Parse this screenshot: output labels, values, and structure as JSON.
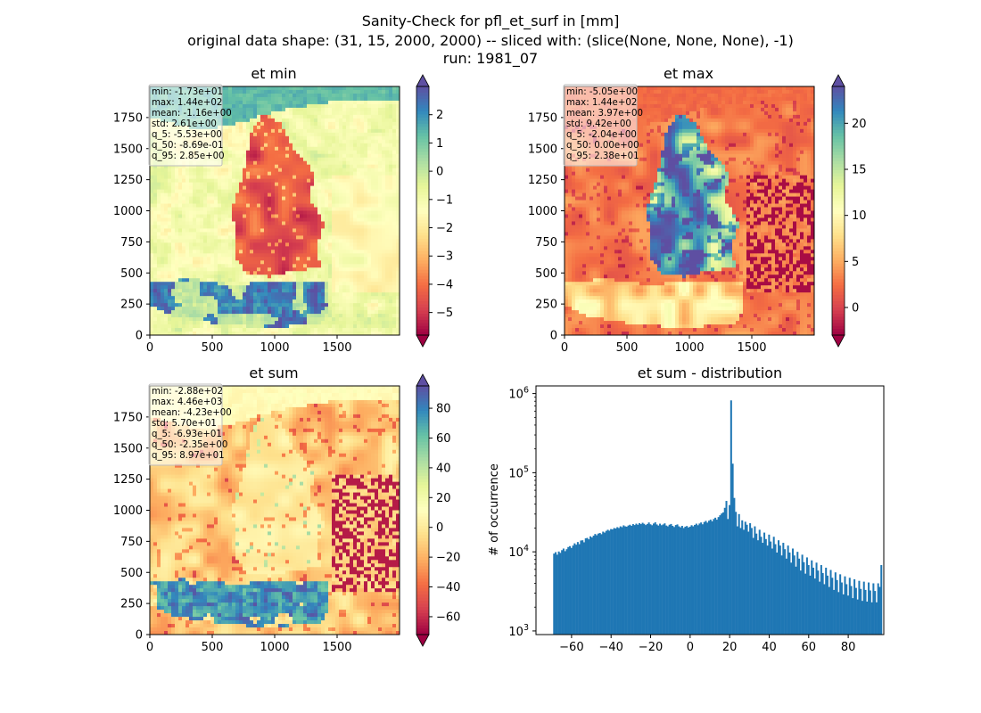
{
  "figure": {
    "title_lines": [
      "Sanity-Check for pfl_et_surf in [mm]",
      "original data shape: (31, 15, 2000, 2000) -- sliced with: (slice(None, None, None), -1)",
      "run: 1981_07"
    ]
  },
  "chart_data": [
    {
      "type": "heatmap",
      "title": "et min",
      "xlim": [
        0,
        2000
      ],
      "ylim": [
        0,
        2000
      ],
      "xticks": [
        0,
        500,
        1000,
        1500
      ],
      "yticks": [
        0,
        250,
        500,
        750,
        1000,
        1250,
        1500,
        1750
      ],
      "colormap": "Spectral",
      "color_range": [
        -5.8,
        3.0
      ],
      "colorbar_ticks": [
        -5,
        -4,
        -3,
        -2,
        -1,
        0,
        1,
        2
      ],
      "colorbar_extend": "both",
      "stats": [
        "min: -1.73e+01",
        "max: 1.44e+02",
        "mean: -1.16e+00",
        "std: 2.61e+00",
        "q_5: -5.53e+00",
        "q_50: -8.69e-01",
        "q_95: 2.85e+00"
      ]
    },
    {
      "type": "heatmap",
      "title": "et max",
      "xlim": [
        0,
        2000
      ],
      "ylim": [
        0,
        2000
      ],
      "xticks": [
        0,
        500,
        1000,
        1500
      ],
      "yticks": [
        0,
        250,
        500,
        750,
        1000,
        1250,
        1500,
        1750
      ],
      "colormap": "Spectral",
      "color_range": [
        -3.0,
        24.0
      ],
      "colorbar_ticks": [
        0,
        5,
        10,
        15,
        20
      ],
      "colorbar_extend": "both",
      "stats": [
        "min: -5.05e+00",
        "max: 1.44e+02",
        "mean: 3.97e+00",
        "std: 9.42e+00",
        "q_5: -2.04e+00",
        "q_50: 0.00e+00",
        "q_95: 2.38e+01"
      ]
    },
    {
      "type": "heatmap",
      "title": "et sum",
      "xlim": [
        0,
        2000
      ],
      "ylim": [
        0,
        2000
      ],
      "xticks": [
        0,
        500,
        1000,
        1500
      ],
      "yticks": [
        0,
        250,
        500,
        750,
        1000,
        1250,
        1500,
        1750
      ],
      "colormap": "Spectral",
      "color_range": [
        -72,
        95
      ],
      "colorbar_ticks": [
        -60,
        -40,
        -20,
        0,
        20,
        40,
        60,
        80
      ],
      "colorbar_extend": "both",
      "stats": [
        "min: -2.88e+02",
        "max: 4.46e+03",
        "mean: -4.23e+00",
        "std: 5.70e+01",
        "q_5: -6.93e+01",
        "q_50: -2.35e+00",
        "q_95: 8.97e+01"
      ]
    },
    {
      "type": "bar",
      "title": "et sum - distribution",
      "ylabel": "# of occurrence",
      "yscale": "log",
      "xlim": [
        -78,
        98
      ],
      "ylim": [
        900,
        1250000
      ],
      "xticks": [
        -60,
        -40,
        -20,
        0,
        20,
        40,
        60,
        80
      ],
      "yticks": [
        1000,
        10000,
        100000,
        1000000
      ],
      "bar_color": "#1f77b4",
      "bin_width": 0.8,
      "x_start": -69.3,
      "values": [
        9500,
        9900,
        9200,
        10100,
        9700,
        10500,
        11000,
        10200,
        10800,
        11500,
        11800,
        11200,
        12000,
        12800,
        12300,
        13300,
        12500,
        13900,
        14000,
        13200,
        14800,
        15000,
        14400,
        15700,
        15200,
        16000,
        16800,
        16200,
        17000,
        17300,
        16700,
        18000,
        17500,
        18400,
        19000,
        18500,
        19400,
        19200,
        20000,
        19700,
        20500,
        20000,
        21000,
        20500,
        21600,
        21000,
        20800,
        21500,
        22000,
        21300,
        22400,
        21800,
        22700,
        22000,
        23000,
        22400,
        23300,
        22600,
        21800,
        22500,
        23500,
        22300,
        21700,
        22800,
        23600,
        22200,
        21500,
        22700,
        21700,
        22200,
        22900,
        21500,
        21000,
        22000,
        22500,
        21300,
        20600,
        21800,
        22200,
        21000,
        20400,
        21300,
        20000,
        20800,
        21200,
        20300,
        20800,
        21700,
        21000,
        21900,
        22700,
        21700,
        22800,
        23500,
        22300,
        23800,
        24600,
        23400,
        24700,
        25500,
        24300,
        26000,
        27000,
        25500,
        27500,
        29000,
        30500,
        31500,
        36000,
        44000,
        26000,
        39000,
        820000,
        130000,
        48000,
        32000,
        21000,
        30000,
        20000,
        25000,
        19000,
        24000,
        22000,
        18000,
        23000,
        20000,
        15000,
        21000,
        17000,
        14000,
        19000,
        15500,
        13000,
        17500,
        14500,
        12000,
        16500,
        13500,
        11000,
        15500,
        12500,
        9800,
        14000,
        12000,
        9000,
        13000,
        10800,
        8200,
        12000,
        9800,
        7300,
        11000,
        9000,
        6500,
        10000,
        8200,
        5800,
        9200,
        7400,
        5300,
        8500,
        6800,
        5000,
        7800,
        6300,
        4600,
        7300,
        5800,
        4200,
        6800,
        5400,
        3900,
        6300,
        5000,
        3600,
        5900,
        4700,
        3300,
        5500,
        4400,
        3100,
        5200,
        4100,
        2900,
        4900,
        3900,
        2800,
        4700,
        3700,
        2600,
        4500,
        3500,
        2500,
        4300,
        3400,
        2400,
        4200,
        3300,
        2350,
        4100,
        3250,
        2300,
        4000,
        3200,
        2300,
        4000,
        3600,
        6800
      ]
    }
  ]
}
